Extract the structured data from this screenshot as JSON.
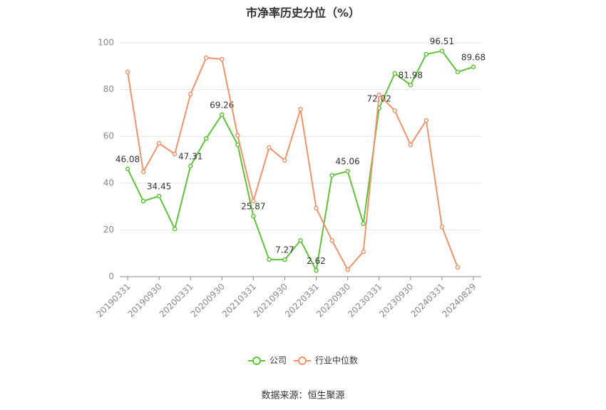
{
  "chart_data": {
    "type": "line",
    "title": "市净率历史分位（%）",
    "categories": [
      "20190331",
      null,
      "20190930",
      null,
      "20200331",
      null,
      "20200930",
      null,
      "20210331",
      null,
      "20210930",
      null,
      "20220331",
      null,
      "20220930",
      null,
      "20230331",
      null,
      "20230930",
      null,
      "20240331",
      null,
      "20240829"
    ],
    "series": [
      {
        "name": "公司",
        "color": "#5fc33a",
        "values": [
          46.08,
          32.3,
          34.45,
          20.4,
          47.31,
          59.1,
          69.26,
          56.4,
          25.87,
          7.3,
          7.27,
          15.5,
          2.62,
          43.3,
          45.06,
          22.6,
          72.02,
          86.9,
          81.98,
          95.1,
          96.51,
          87.5,
          89.68
        ],
        "value_labels": [
          "46.08",
          null,
          "34.45",
          null,
          "47.31",
          null,
          "69.26",
          null,
          "25.87",
          null,
          "7.27",
          null,
          "2.62",
          null,
          "45.06",
          null,
          "72.02",
          null,
          "81.98",
          null,
          "96.51",
          null,
          "89.68"
        ]
      },
      {
        "name": "行业中位数",
        "color": "#f0936a",
        "values": [
          87.5,
          44.8,
          57.0,
          52.4,
          78.0,
          93.6,
          93.0,
          60.4,
          32.3,
          55.2,
          49.7,
          71.6,
          29.3,
          15.5,
          3.0,
          10.7,
          77.7,
          71.0,
          56.4,
          66.8,
          21.3,
          4.0,
          null
        ]
      }
    ],
    "ylim": [
      0,
      100
    ],
    "yticks": [
      0,
      20,
      40,
      60,
      80,
      100
    ],
    "grid": true,
    "legend": "bottom",
    "source": "数据来源：恒生聚源"
  }
}
